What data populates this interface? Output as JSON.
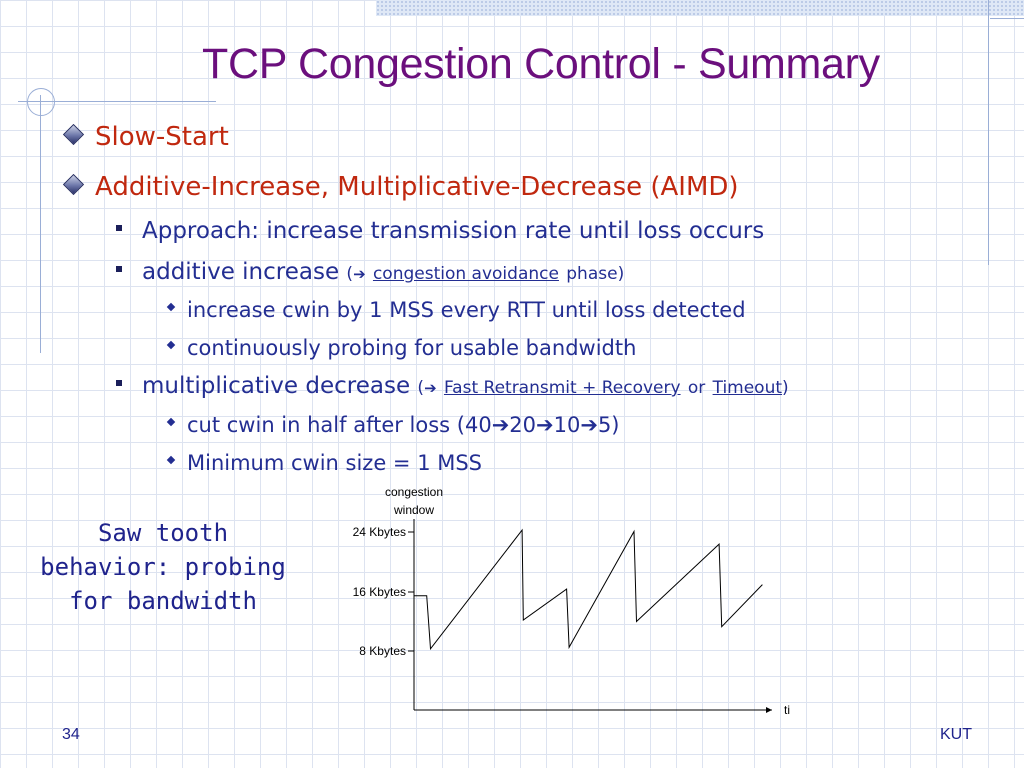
{
  "slide": {
    "title": "TCP Congestion Control - Summary",
    "bullets": {
      "slow_start": "Slow-Start",
      "aimd": "Additive-Increase, Multiplicative-Decrease (AIMD)",
      "approach": "Approach: increase transmission rate until loss occurs",
      "additive": {
        "text": "additive increase",
        "open": "(",
        "arrow": "➔",
        "link": "congestion avoidance",
        "rest": "phase)"
      },
      "additive_sub1": "increase cwin by 1 MSS every RTT until loss detected",
      "additive_sub2": "continuously probing for usable bandwidth",
      "multiplicative": {
        "text": "multiplicative decrease",
        "open": "(",
        "arrow": "➔",
        "link1": "Fast Retransmit + Recovery",
        "or": "or",
        "link2": "Timeout",
        "close": ")"
      },
      "mult_sub1": "cut cwin in half after loss (40➔20➔10➔5)",
      "mult_sub2": "Minimum cwin size = 1 MSS"
    },
    "caption_line1": "Saw tooth",
    "caption_line2": "behavior: probing",
    "caption_line3": "for bandwidth",
    "page_number": "34",
    "footer": "KUT"
  },
  "chart_data": {
    "type": "line",
    "ylabel_line1": "congestion",
    "ylabel_line2": "window",
    "xlabel": "time",
    "yticks": [
      "8 Kbytes",
      "16 Kbytes",
      "24 Kbytes"
    ],
    "series": [
      {
        "x": [
          0,
          1,
          1.3,
          8.5,
          8.6,
          12,
          12.2,
          17.3,
          17.5,
          24,
          24.2,
          27.4
        ],
        "y": [
          15.5,
          15.5,
          8.3,
          24.4,
          12.2,
          16.4,
          8.5,
          24.2,
          12.0,
          22.5,
          11.3,
          17.0
        ]
      }
    ],
    "colors": {
      "line": "#000000",
      "title": "#6b0f7d",
      "l1": "#c0280f",
      "l2": "#232e92"
    }
  }
}
